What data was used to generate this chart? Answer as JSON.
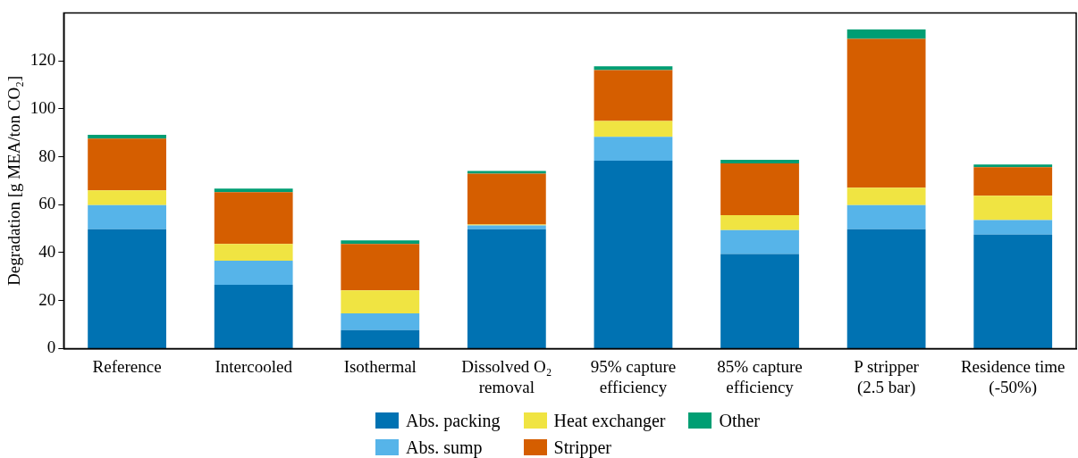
{
  "chart_data": {
    "type": "bar",
    "stacked": true,
    "ylabel": "Degradation [g MEA/ton CO₂]",
    "categories": [
      "Reference",
      "Intercooled",
      "Isothermal",
      "Dissolved O₂\nremoval",
      "95% capture\nefficiency",
      "85% capture\nefficiency",
      "P stripper\n(2.5 bar)",
      "Residence time\n(-50%)"
    ],
    "series": [
      {
        "name": "Abs. packing",
        "color": "#0072b2",
        "values": [
          49.8,
          26.6,
          7.7,
          49.8,
          78.3,
          39.4,
          49.8,
          47.5
        ]
      },
      {
        "name": "Abs. sump",
        "color": "#56b4e9",
        "values": [
          10,
          10,
          7,
          1.5,
          10,
          10,
          10,
          6.1
        ]
      },
      {
        "name": "Heat exchanger",
        "color": "#f0e442",
        "values": [
          6.2,
          7,
          9.6,
          0.4,
          6.6,
          6.2,
          7.3,
          10.1
        ]
      },
      {
        "name": "Stripper",
        "color": "#d55e00",
        "values": [
          21.6,
          21.6,
          19.3,
          21.2,
          21.2,
          21.6,
          62.1,
          11.9
        ]
      },
      {
        "name": "Other",
        "color": "#009e73",
        "values": [
          1.5,
          1.5,
          1.5,
          1.2,
          1.6,
          1.5,
          3.9,
          1.2
        ]
      }
    ],
    "ylim": [
      0,
      140
    ],
    "yticks": [
      0,
      20,
      40,
      60,
      80,
      100,
      120
    ],
    "grid": false,
    "legend": "bottom"
  }
}
